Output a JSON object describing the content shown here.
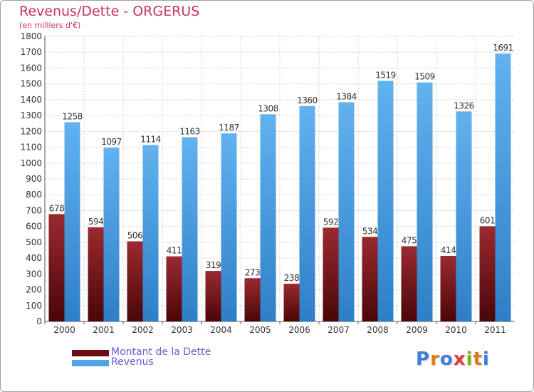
{
  "title": "Revenus/Dette - ORGERUS",
  "subtitle": "(en milliers d'€)",
  "legend": {
    "items": [
      {
        "label": "Montant de la Dette",
        "color": "#6b0d12"
      },
      {
        "label": "Revenus",
        "color": "#4fa3e6"
      }
    ]
  },
  "logo": {
    "letters": [
      "P",
      "r",
      "o",
      "x",
      "i",
      "t",
      "i"
    ],
    "colors": [
      "#3f7fd9",
      "#e07a1f",
      "#3f7fd9",
      "#e03a3a",
      "#7ab51d",
      "#e07a1f",
      "#3f7fd9"
    ]
  },
  "chart_data": {
    "type": "bar",
    "categories": [
      "2000",
      "2001",
      "2002",
      "2003",
      "2004",
      "2005",
      "2006",
      "2007",
      "2008",
      "2009",
      "2010",
      "2011"
    ],
    "series": [
      {
        "name": "Montant de la Dette",
        "values": [
          678,
          594,
          506,
          411,
          319,
          273,
          238,
          592,
          534,
          475,
          414,
          601
        ],
        "color": "#6b0d12"
      },
      {
        "name": "Revenus",
        "values": [
          1258,
          1097,
          1114,
          1163,
          1187,
          1308,
          1360,
          1384,
          1519,
          1509,
          1326,
          1691
        ],
        "color": "#4fa3e6"
      }
    ],
    "ylim": [
      0,
      1800
    ],
    "yticks": [
      "0",
      "100",
      "200",
      "300",
      "400",
      "500",
      "600",
      "700",
      "800",
      "900",
      "1000",
      "1100",
      "1200",
      "1300",
      "1400",
      "1500",
      "1600",
      "1700",
      "1800"
    ],
    "grid": true,
    "legend_position": "bottom-left"
  }
}
